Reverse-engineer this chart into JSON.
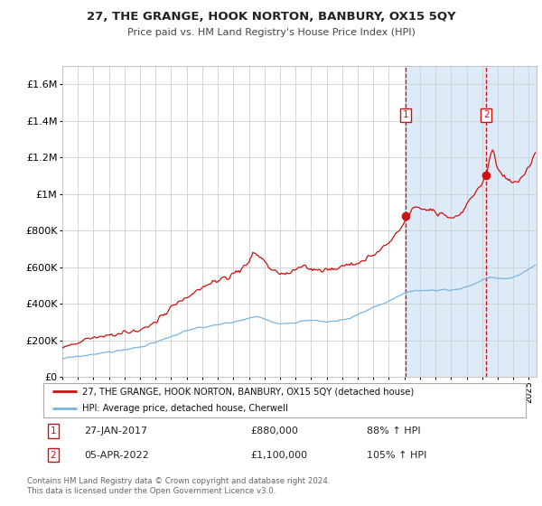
{
  "title": "27, THE GRANGE, HOOK NORTON, BANBURY, OX15 5QY",
  "subtitle": "Price paid vs. HM Land Registry's House Price Index (HPI)",
  "legend_line1": "27, THE GRANGE, HOOK NORTON, BANBURY, OX15 5QY (detached house)",
  "legend_line2": "HPI: Average price, detached house, Cherwell",
  "annotation1_label": "1",
  "annotation1_date": "27-JAN-2017",
  "annotation1_price": "£880,000",
  "annotation1_hpi": "88% ↑ HPI",
  "annotation1_year": 2017.07,
  "annotation1_value": 880000,
  "annotation2_label": "2",
  "annotation2_date": "05-APR-2022",
  "annotation2_price": "£1,100,000",
  "annotation2_hpi": "105% ↑ HPI",
  "annotation2_year": 2022.26,
  "annotation2_value": 1100000,
  "footer": "Contains HM Land Registry data © Crown copyright and database right 2024.\nThis data is licensed under the Open Government Licence v3.0.",
  "xmin": 1995,
  "xmax": 2025.5,
  "ymin": 0,
  "ymax": 1700000,
  "background_color": "#ffffff",
  "highlight_bg_color": "#ddeaf7",
  "grid_color": "#d0d0d0",
  "hpi_line_color": "#7ab4e0",
  "price_line_color": "#cc1111",
  "vline_color": "#cc1111",
  "annotation_box_color": "#cc1111",
  "dot_color": "#cc1111"
}
